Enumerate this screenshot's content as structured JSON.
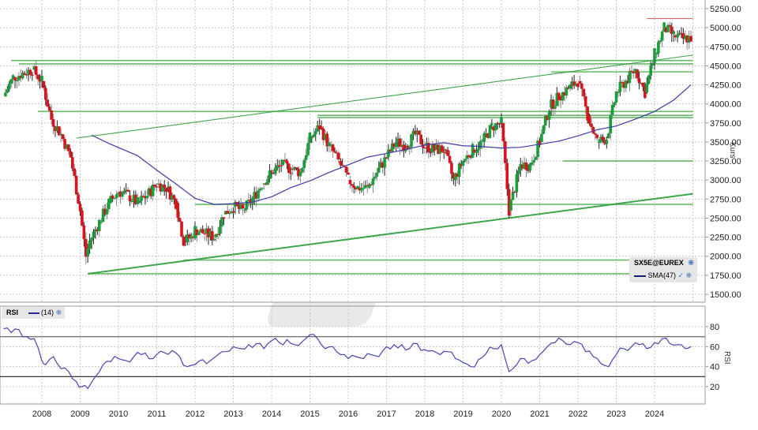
{
  "chart_data": [
    {
      "type": "candlestick",
      "title": "SX5E@EUREX",
      "instrument": "SX5E@EUREX",
      "ylabel": "Kurs",
      "xlabel": "",
      "ylim": [
        1500,
        5250
      ],
      "grid": true,
      "y_ticks": [
        "5250.00",
        "5000.00",
        "4750.00",
        "4500.00",
        "4250.00",
        "4000.00",
        "3750.00",
        "3500.00",
        "3250.00",
        "3000.00",
        "2750.00",
        "2500.00",
        "2250.00",
        "2000.00",
        "1750.00",
        "1500.00"
      ],
      "x_ticks": [
        "2008",
        "2009",
        "2010",
        "2011",
        "2012",
        "2013",
        "2014",
        "2015",
        "2016",
        "2017",
        "2018",
        "2019",
        "2020",
        "2021",
        "2022",
        "2023",
        "2024"
      ],
      "legend": [
        {
          "label": "SX5E@EUREX",
          "type": "price"
        },
        {
          "label": "SMA(47)",
          "type": "line",
          "color": "#2b2b8f"
        }
      ],
      "colors": {
        "up": "#1a9e3a",
        "down": "#d8131b",
        "wick": "#555555",
        "sma": "#3d3da8",
        "support": "#22a03a",
        "resistance": "#d82020"
      },
      "price_series_approx": {
        "x": [
          2007.0,
          2007.25,
          2007.5,
          2007.75,
          2008.0,
          2008.25,
          2008.5,
          2008.75,
          2009.0,
          2009.15,
          2009.25,
          2009.5,
          2009.75,
          2010.0,
          2010.25,
          2010.5,
          2010.75,
          2011.0,
          2011.25,
          2011.5,
          2011.7,
          2011.9,
          2012.0,
          2012.25,
          2012.5,
          2012.75,
          2013.0,
          2013.25,
          2013.5,
          2013.75,
          2014.0,
          2014.25,
          2014.5,
          2014.75,
          2015.0,
          2015.25,
          2015.5,
          2015.75,
          2016.0,
          2016.25,
          2016.5,
          2016.75,
          2017.0,
          2017.25,
          2017.5,
          2017.75,
          2018.0,
          2018.25,
          2018.5,
          2018.75,
          2019.0,
          2019.25,
          2019.5,
          2019.75,
          2020.0,
          2020.2,
          2020.5,
          2020.75,
          2021.0,
          2021.25,
          2021.5,
          2021.75,
          2022.0,
          2022.25,
          2022.5,
          2022.75,
          2023.0,
          2023.25,
          2023.5,
          2023.75,
          2024.0,
          2024.25,
          2024.5,
          2024.75,
          2024.95
        ],
        "close": [
          4100,
          4350,
          4400,
          4450,
          4300,
          3800,
          3600,
          3300,
          2600,
          2000,
          2200,
          2450,
          2700,
          2850,
          2800,
          2700,
          2800,
          2950,
          2900,
          2700,
          2200,
          2250,
          2350,
          2300,
          2250,
          2550,
          2650,
          2600,
          2750,
          2950,
          3100,
          3200,
          3150,
          3100,
          3550,
          3700,
          3450,
          3250,
          3000,
          2900,
          2900,
          3100,
          3300,
          3500,
          3450,
          3600,
          3450,
          3400,
          3400,
          3000,
          3250,
          3400,
          3500,
          3700,
          3750,
          2600,
          3200,
          3200,
          3500,
          3950,
          4100,
          4200,
          4300,
          3850,
          3500,
          3550,
          4150,
          4300,
          4450,
          4150,
          4650,
          5000,
          4900,
          4850,
          4870
        ]
      },
      "sma47_approx": {
        "x": [
          2009.3,
          2009.75,
          2010.5,
          2011.0,
          2011.5,
          2012.0,
          2012.5,
          2013.0,
          2013.5,
          2014.0,
          2014.5,
          2015.0,
          2015.5,
          2016.0,
          2016.5,
          2017.0,
          2017.5,
          2018.0,
          2018.5,
          2019.0,
          2019.5,
          2020.0,
          2020.5,
          2021.0,
          2021.5,
          2022.0,
          2022.5,
          2023.0,
          2023.5,
          2024.0,
          2024.5,
          2024.95
        ],
        "values": [
          3590,
          3480,
          3320,
          3130,
          2950,
          2760,
          2680,
          2690,
          2710,
          2780,
          2900,
          2990,
          3100,
          3200,
          3300,
          3350,
          3400,
          3460,
          3490,
          3450,
          3440,
          3420,
          3430,
          3470,
          3510,
          3580,
          3660,
          3710,
          3800,
          3900,
          4050,
          4250
        ]
      },
      "horizontal_lines": [
        {
          "level": 5120,
          "color": "red",
          "from": 2023.8,
          "to": 2025.0
        },
        {
          "level": 4570,
          "color": "green",
          "from": 2007.2,
          "to": 2025.0
        },
        {
          "level": 4525,
          "color": "green",
          "from": 2007.4,
          "to": 2025.0
        },
        {
          "level": 4420,
          "color": "green",
          "from": 2021.3,
          "to": 2025.0
        },
        {
          "level": 3900,
          "color": "green",
          "from": 2007.9,
          "to": 2025.0
        },
        {
          "level": 3850,
          "color": "green",
          "from": 2015.2,
          "to": 2025.0
        },
        {
          "level": 3820,
          "color": "green",
          "from": 2015.2,
          "to": 2025.0
        },
        {
          "level": 3250,
          "color": "green",
          "from": 2021.6,
          "to": 2025.0
        },
        {
          "level": 2680,
          "color": "green",
          "from": 2012.0,
          "to": 2025.0
        },
        {
          "level": 1950,
          "color": "green",
          "from": 2011.7,
          "to": 2025.0
        },
        {
          "level": 1770,
          "color": "green",
          "from": 2009.2,
          "to": 2025.0
        }
      ],
      "trend_lines": [
        {
          "from": [
            2008.9,
            3550
          ],
          "to": [
            2025.0,
            4640
          ],
          "color": "green"
        },
        {
          "from": [
            2009.2,
            1770
          ],
          "to": [
            2025.0,
            2820
          ],
          "color": "green",
          "width": 2
        }
      ]
    },
    {
      "type": "line",
      "title": "RSI",
      "ylabel": "RSI",
      "legend": [
        {
          "label": "(14)",
          "color": "#3d3da8"
        }
      ],
      "ylim": [
        0,
        100
      ],
      "y_ticks": [
        "80",
        "60",
        "40",
        "20"
      ],
      "reference_lines": [
        70,
        30
      ],
      "series": [
        {
          "name": "RSI(14)",
          "x": [
            2007.0,
            2007.2,
            2007.4,
            2007.6,
            2007.8,
            2008.0,
            2008.1,
            2008.3,
            2008.5,
            2008.7,
            2008.9,
            2009.05,
            2009.2,
            2009.4,
            2009.6,
            2009.8,
            2010.0,
            2010.2,
            2010.4,
            2010.6,
            2010.8,
            2011.0,
            2011.2,
            2011.4,
            2011.6,
            2011.8,
            2012.0,
            2012.2,
            2012.4,
            2012.6,
            2012.8,
            2013.0,
            2013.2,
            2013.4,
            2013.6,
            2013.8,
            2014.0,
            2014.2,
            2014.4,
            2014.6,
            2014.8,
            2015.0,
            2015.2,
            2015.4,
            2015.6,
            2015.8,
            2016.0,
            2016.2,
            2016.4,
            2016.6,
            2016.8,
            2017.0,
            2017.2,
            2017.4,
            2017.6,
            2017.8,
            2018.0,
            2018.2,
            2018.4,
            2018.6,
            2018.8,
            2019.0,
            2019.2,
            2019.4,
            2019.6,
            2019.8,
            2020.0,
            2020.2,
            2020.4,
            2020.6,
            2020.8,
            2021.0,
            2021.2,
            2021.4,
            2021.6,
            2021.8,
            2022.0,
            2022.2,
            2022.4,
            2022.6,
            2022.8,
            2023.0,
            2023.2,
            2023.4,
            2023.6,
            2023.8,
            2024.0,
            2024.2,
            2024.4,
            2024.6,
            2024.8,
            2024.95
          ],
          "values": [
            78,
            74,
            77,
            70,
            68,
            46,
            42,
            50,
            38,
            35,
            25,
            20,
            18,
            30,
            42,
            45,
            48,
            46,
            50,
            52,
            48,
            52,
            54,
            56,
            50,
            40,
            42,
            47,
            46,
            52,
            55,
            60,
            58,
            62,
            63,
            58,
            66,
            64,
            67,
            62,
            65,
            72,
            68,
            58,
            60,
            52,
            48,
            50,
            48,
            52,
            50,
            60,
            62,
            62,
            58,
            63,
            57,
            56,
            52,
            55,
            48,
            44,
            40,
            47,
            53,
            58,
            62,
            35,
            42,
            48,
            46,
            52,
            60,
            64,
            66,
            62,
            64,
            55,
            50,
            43,
            40,
            52,
            58,
            60,
            62,
            58,
            64,
            68,
            63,
            62,
            58,
            60
          ]
        }
      ]
    }
  ],
  "panels": {
    "main": {
      "legend_instrument": "SX5E@EUREX",
      "legend_sma": "SMA(47)",
      "axis_label": "Kurs"
    },
    "rsi": {
      "legend_title": "RSI",
      "legend_period": "(14)",
      "axis_label": "RSI"
    }
  }
}
